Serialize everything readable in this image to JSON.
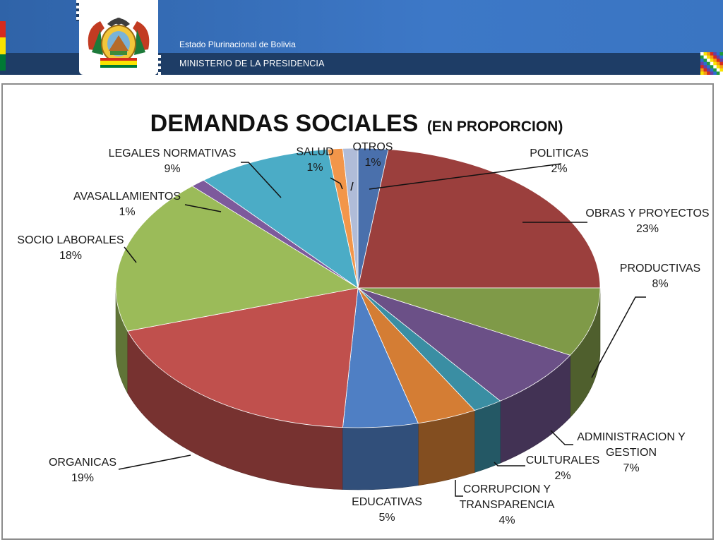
{
  "header": {
    "subtitle": "Estado Plurinacional de Bolivia",
    "ministry": "MINISTERIO DE LA PRESIDENCIA",
    "emblem_icon": "bolivia-coat-of-arms-icon",
    "flag_colors": [
      "#d52b1e",
      "#f9e300",
      "#007934"
    ]
  },
  "chart_data": {
    "type": "pie",
    "title": "DEMANDAS SOCIALES",
    "title_suffix": "(EN PROPORCION)",
    "style": "3d-exploded-pie",
    "slices": [
      {
        "label": "POLITICAS",
        "value": 2,
        "display": "2%",
        "color": "#4a70ac"
      },
      {
        "label": "OBRAS Y PROYECTOS",
        "value": 23,
        "display": "23%",
        "color": "#9b3f3d"
      },
      {
        "label": "PRODUCTIVAS",
        "value": 8,
        "display": "8%",
        "color": "#7f9a48"
      },
      {
        "label": "ADMINISTRACION Y GESTION",
        "value": 7,
        "display": "7%",
        "color": "#6b5087"
      },
      {
        "label": "CULTURALES",
        "value": 2,
        "display": "2%",
        "color": "#3a8ea3"
      },
      {
        "label": "CORRUPCION Y TRANSPARENCIA",
        "value": 4,
        "display": "4%",
        "color": "#d47d34"
      },
      {
        "label": "EDUCATIVAS",
        "value": 5,
        "display": "5%",
        "color": "#4f7fc4"
      },
      {
        "label": "ORGANICAS",
        "value": 19,
        "display": "19%",
        "color": "#c0504d"
      },
      {
        "label": "SOCIO LABORALES",
        "value": 18,
        "display": "18%",
        "color": "#9bbb59"
      },
      {
        "label": "AVASALLAMIENTOS",
        "value": 1,
        "display": "1%",
        "color": "#7d5a9c"
      },
      {
        "label": "LEGALES NORMATIVAS",
        "value": 9,
        "display": "9%",
        "color": "#4bacc6"
      },
      {
        "label": "SALUD",
        "value": 1,
        "display": "1%",
        "color": "#f2964a"
      },
      {
        "label": "OTROS",
        "value": 1,
        "display": "1%",
        "color": "#b0bcd8"
      }
    ]
  }
}
